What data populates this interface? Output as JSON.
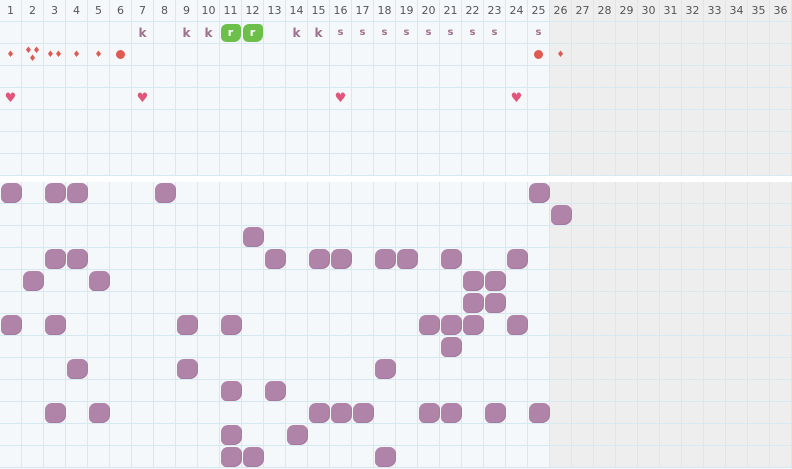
{
  "columns": [
    "1",
    "2",
    "3",
    "4",
    "5",
    "6",
    "7",
    "8",
    "9",
    "10",
    "11",
    "12",
    "13",
    "14",
    "15",
    "16",
    "17",
    "18",
    "19",
    "20",
    "21",
    "22",
    "23",
    "24",
    "25",
    "26",
    "27",
    "28",
    "29",
    "30",
    "31",
    "32",
    "33",
    "34",
    "35",
    "36"
  ],
  "shaded_from_column": 26,
  "top_rows": 7,
  "bottom_rows": 13,
  "colors": {
    "grid_line": "#d6e9f2",
    "background": "#f4f8fa",
    "shaded": "#eeeeee",
    "blob": "#b084a8",
    "badge": "#6cc04a",
    "drop": "#e05a52",
    "heart": "#e0557a",
    "letter": "#a0708f"
  },
  "top_marks": [
    {
      "row": 1,
      "col": 7,
      "type": "k",
      "text": "k"
    },
    {
      "row": 1,
      "col": 9,
      "type": "k",
      "text": "k"
    },
    {
      "row": 1,
      "col": 10,
      "type": "k",
      "text": "k"
    },
    {
      "row": 1,
      "col": 11,
      "type": "r",
      "text": "r"
    },
    {
      "row": 1,
      "col": 12,
      "type": "r",
      "text": "r"
    },
    {
      "row": 1,
      "col": 14,
      "type": "k",
      "text": "k"
    },
    {
      "row": 1,
      "col": 15,
      "type": "k",
      "text": "k"
    },
    {
      "row": 1,
      "col": 16,
      "type": "s",
      "text": "s"
    },
    {
      "row": 1,
      "col": 17,
      "type": "s",
      "text": "s"
    },
    {
      "row": 1,
      "col": 18,
      "type": "s",
      "text": "s"
    },
    {
      "row": 1,
      "col": 19,
      "type": "s",
      "text": "s"
    },
    {
      "row": 1,
      "col": 20,
      "type": "s",
      "text": "s"
    },
    {
      "row": 1,
      "col": 21,
      "type": "s",
      "text": "s"
    },
    {
      "row": 1,
      "col": 22,
      "type": "s",
      "text": "s"
    },
    {
      "row": 1,
      "col": 23,
      "type": "s",
      "text": "s"
    },
    {
      "row": 1,
      "col": 25,
      "type": "s",
      "text": "s"
    },
    {
      "row": 2,
      "col": 1,
      "type": "drop",
      "count": 1
    },
    {
      "row": 2,
      "col": 2,
      "type": "drop",
      "count": 3
    },
    {
      "row": 2,
      "col": 3,
      "type": "drop",
      "count": 2
    },
    {
      "row": 2,
      "col": 4,
      "type": "drop",
      "count": 1
    },
    {
      "row": 2,
      "col": 5,
      "type": "drop",
      "count": 1
    },
    {
      "row": 2,
      "col": 6,
      "type": "dot"
    },
    {
      "row": 2,
      "col": 25,
      "type": "dot"
    },
    {
      "row": 2,
      "col": 26,
      "type": "drop",
      "count": 1
    },
    {
      "row": 4,
      "col": 1,
      "type": "heart"
    },
    {
      "row": 4,
      "col": 7,
      "type": "heart"
    },
    {
      "row": 4,
      "col": 16,
      "type": "heart"
    },
    {
      "row": 4,
      "col": 24,
      "type": "heart"
    }
  ],
  "bottom_blobs": [
    [
      1,
      3,
      4,
      8,
      25
    ],
    [
      26
    ],
    [
      12
    ],
    [
      3,
      4,
      13,
      15,
      16,
      18,
      19,
      21,
      24
    ],
    [
      2,
      5,
      22,
      23
    ],
    [
      22,
      23
    ],
    [
      1,
      3,
      9,
      11,
      20,
      21,
      22,
      24
    ],
    [
      21
    ],
    [
      4,
      9,
      18
    ],
    [
      11,
      13
    ],
    [
      3,
      5,
      15,
      16,
      17,
      20,
      21,
      23,
      25
    ],
    [
      11,
      14
    ],
    [
      11,
      12,
      18
    ]
  ]
}
